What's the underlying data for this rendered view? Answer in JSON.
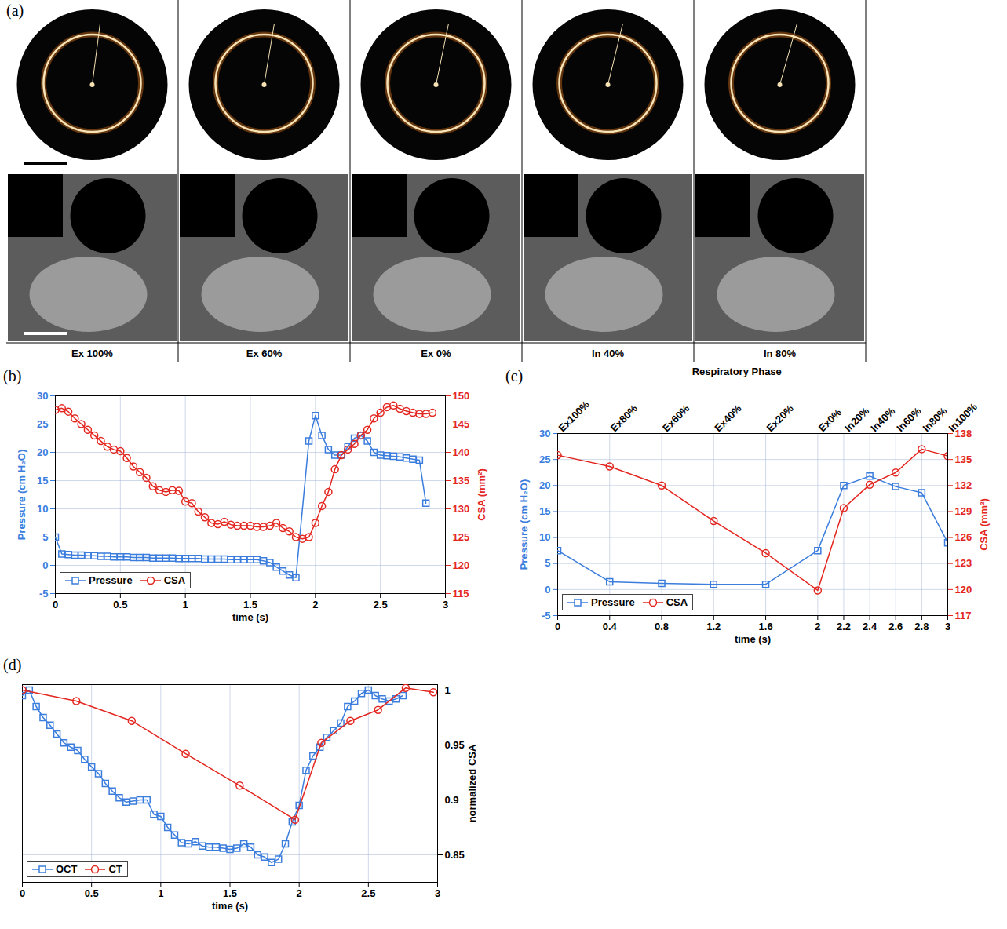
{
  "panel_a": {
    "panel": "(a)",
    "phases": [
      "Ex 100%",
      "Ex 60%",
      "Ex 0%",
      "In 40%",
      "In 80%"
    ],
    "axis_label": "Respiratory Phase"
  },
  "chart_data": [
    {
      "panel": "(b)",
      "type": "line",
      "xlabel": "time (s)",
      "ylabel": "Pressure (cm H₂O)",
      "y2label": "CSA (mm²)",
      "xlim": [
        0,
        3
      ],
      "xticks": [
        0,
        0.5,
        1,
        1.5,
        2,
        2.5,
        3
      ],
      "ylim": [
        -5,
        30
      ],
      "yticks": [
        -5,
        0,
        5,
        10,
        15,
        20,
        25,
        30
      ],
      "y2lim": [
        115,
        150
      ],
      "y2ticks": [
        115,
        120,
        125,
        130,
        135,
        140,
        145,
        150
      ],
      "grid": true,
      "legend": "lower left",
      "series": [
        {
          "name": "Pressure",
          "color": "#3b7ddd",
          "marker": "square",
          "x": [
            0,
            0.05,
            0.1,
            0.15,
            0.2,
            0.25,
            0.3,
            0.35,
            0.4,
            0.45,
            0.5,
            0.55,
            0.6,
            0.65,
            0.7,
            0.75,
            0.8,
            0.85,
            0.9,
            0.95,
            1.0,
            1.05,
            1.1,
            1.15,
            1.2,
            1.25,
            1.3,
            1.35,
            1.4,
            1.45,
            1.5,
            1.55,
            1.6,
            1.65,
            1.7,
            1.75,
            1.8,
            1.85,
            1.95,
            2.0,
            2.05,
            2.1,
            2.15,
            2.2,
            2.25,
            2.3,
            2.35,
            2.4,
            2.45,
            2.5,
            2.55,
            2.6,
            2.65,
            2.7,
            2.75,
            2.8,
            2.85
          ],
          "values": [
            5,
            2.0,
            1.9,
            1.8,
            1.8,
            1.7,
            1.7,
            1.6,
            1.6,
            1.5,
            1.5,
            1.5,
            1.4,
            1.4,
            1.4,
            1.3,
            1.3,
            1.3,
            1.3,
            1.2,
            1.2,
            1.2,
            1.2,
            1.1,
            1.1,
            1.1,
            1.1,
            1.0,
            1.0,
            1.0,
            1.0,
            1.0,
            0.8,
            0.5,
            -0.3,
            -1.0,
            -1.7,
            -2.2,
            22,
            26.5,
            23,
            20.5,
            19.5,
            19.5,
            21,
            22.5,
            23,
            22,
            20,
            19.5,
            19.4,
            19.3,
            19.2,
            19,
            18.8,
            18.6,
            11
          ]
        },
        {
          "name": "CSA",
          "color": "#e3261f",
          "marker": "circle",
          "axis": "y2",
          "x": [
            0,
            0.05,
            0.1,
            0.15,
            0.2,
            0.25,
            0.3,
            0.35,
            0.4,
            0.45,
            0.5,
            0.55,
            0.6,
            0.65,
            0.7,
            0.75,
            0.8,
            0.85,
            0.9,
            0.95,
            1.0,
            1.05,
            1.1,
            1.15,
            1.2,
            1.25,
            1.3,
            1.35,
            1.4,
            1.45,
            1.5,
            1.55,
            1.6,
            1.65,
            1.7,
            1.75,
            1.8,
            1.85,
            1.9,
            1.95,
            2.0,
            2.05,
            2.1,
            2.15,
            2.2,
            2.25,
            2.3,
            2.35,
            2.4,
            2.45,
            2.5,
            2.55,
            2.6,
            2.65,
            2.7,
            2.75,
            2.8,
            2.85,
            2.9
          ],
          "values": [
            147.5,
            147.8,
            147.2,
            146,
            145,
            144,
            143,
            142,
            141,
            140.5,
            140.2,
            139,
            137.5,
            136.5,
            135.5,
            134,
            133.3,
            133,
            133.3,
            133.2,
            131.3,
            131,
            129.5,
            128.5,
            127.5,
            127.3,
            127.7,
            127.2,
            127,
            127,
            127,
            126.8,
            126.8,
            127,
            127.5,
            126.6,
            126,
            125,
            124.7,
            125,
            127.5,
            130.5,
            133,
            137,
            139.5,
            140.5,
            141.5,
            143,
            144,
            146,
            147,
            148,
            148.3,
            147.7,
            147.3,
            147,
            146.8,
            146.8,
            147
          ]
        }
      ]
    },
    {
      "panel": "(c)",
      "type": "line",
      "xlabel": "time (s)",
      "ylabel": "Pressure (cm H₂O)",
      "y2label": "CSA (mm²)",
      "x": [
        0,
        0.4,
        0.8,
        1.2,
        1.6,
        2,
        2.2,
        2.4,
        2.6,
        2.8,
        3
      ],
      "top_labels": [
        "Ex100%",
        "Ex80%",
        "Ex60%",
        "Ex40%",
        "Ex20%",
        "Ex0%",
        "In20%",
        "In40%",
        "In60%",
        "In80%",
        "In100%"
      ],
      "xlim": [
        0,
        3
      ],
      "xticks": [
        0,
        0.4,
        0.8,
        1.2,
        1.6,
        2,
        2.2,
        2.4,
        2.6,
        2.8,
        3
      ],
      "ylim": [
        -5,
        30
      ],
      "yticks": [
        -5,
        0,
        5,
        10,
        15,
        20,
        25,
        30
      ],
      "y2lim": [
        117,
        138
      ],
      "y2ticks": [
        117,
        120,
        123,
        126,
        129,
        132,
        135,
        138
      ],
      "grid": true,
      "legend": "lower left",
      "series": [
        {
          "name": "Pressure",
          "color": "#3b7ddd",
          "marker": "square",
          "values": [
            7.5,
            1.5,
            1.2,
            1,
            1,
            7.5,
            20,
            21.8,
            19.8,
            18.6,
            9
          ]
        },
        {
          "name": "CSA",
          "color": "#e3261f",
          "marker": "circle",
          "axis": "y2",
          "values": [
            135.5,
            134.2,
            132,
            127.9,
            124.2,
            119.9,
            129.4,
            132.1,
            133.5,
            136.2,
            135.4
          ]
        }
      ]
    },
    {
      "panel": "(d)",
      "type": "line",
      "xlabel": "time (s)",
      "ylabel": "normalized CSA",
      "xlim": [
        0,
        3
      ],
      "xticks": [
        0,
        0.5,
        1,
        1.5,
        2,
        2.5,
        3
      ],
      "ylim": [
        0.825,
        1.005
      ],
      "yticks": [
        0.85,
        0.9,
        0.95,
        1
      ],
      "grid": true,
      "legend": "lower left",
      "series": [
        {
          "name": "OCT",
          "color": "#3b7ddd",
          "marker": "square",
          "x": [
            0,
            0.05,
            0.1,
            0.15,
            0.2,
            0.25,
            0.3,
            0.35,
            0.4,
            0.45,
            0.5,
            0.55,
            0.6,
            0.65,
            0.7,
            0.75,
            0.8,
            0.85,
            0.9,
            0.95,
            1.0,
            1.05,
            1.1,
            1.15,
            1.2,
            1.25,
            1.3,
            1.35,
            1.4,
            1.45,
            1.5,
            1.55,
            1.6,
            1.65,
            1.7,
            1.75,
            1.8,
            1.85,
            1.9,
            1.95,
            2.0,
            2.05,
            2.1,
            2.15,
            2.2,
            2.25,
            2.3,
            2.35,
            2.4,
            2.45,
            2.5,
            2.55,
            2.6,
            2.65,
            2.7,
            2.75
          ],
          "values": [
            0.995,
            1.0,
            0.985,
            0.975,
            0.968,
            0.96,
            0.952,
            0.948,
            0.945,
            0.937,
            0.93,
            0.924,
            0.915,
            0.908,
            0.902,
            0.898,
            0.899,
            0.9,
            0.9,
            0.887,
            0.885,
            0.875,
            0.868,
            0.861,
            0.86,
            0.862,
            0.858,
            0.857,
            0.857,
            0.856,
            0.855,
            0.856,
            0.86,
            0.857,
            0.85,
            0.848,
            0.843,
            0.846,
            0.86,
            0.88,
            0.895,
            0.927,
            0.94,
            0.948,
            0.957,
            0.963,
            0.97,
            0.985,
            0.99,
            0.997,
            1.0,
            0.995,
            0.992,
            0.99,
            0.992,
            0.995
          ]
        },
        {
          "name": "CT",
          "color": "#e3261f",
          "marker": "circle",
          "x": [
            0,
            0.39,
            0.79,
            1.18,
            1.57,
            1.97,
            2.16,
            2.37,
            2.57,
            2.77,
            2.97
          ],
          "values": [
            1,
            0.99,
            0.972,
            0.942,
            0.913,
            0.882,
            0.952,
            0.972,
            0.982,
            1.002,
            0.998
          ]
        }
      ]
    }
  ]
}
